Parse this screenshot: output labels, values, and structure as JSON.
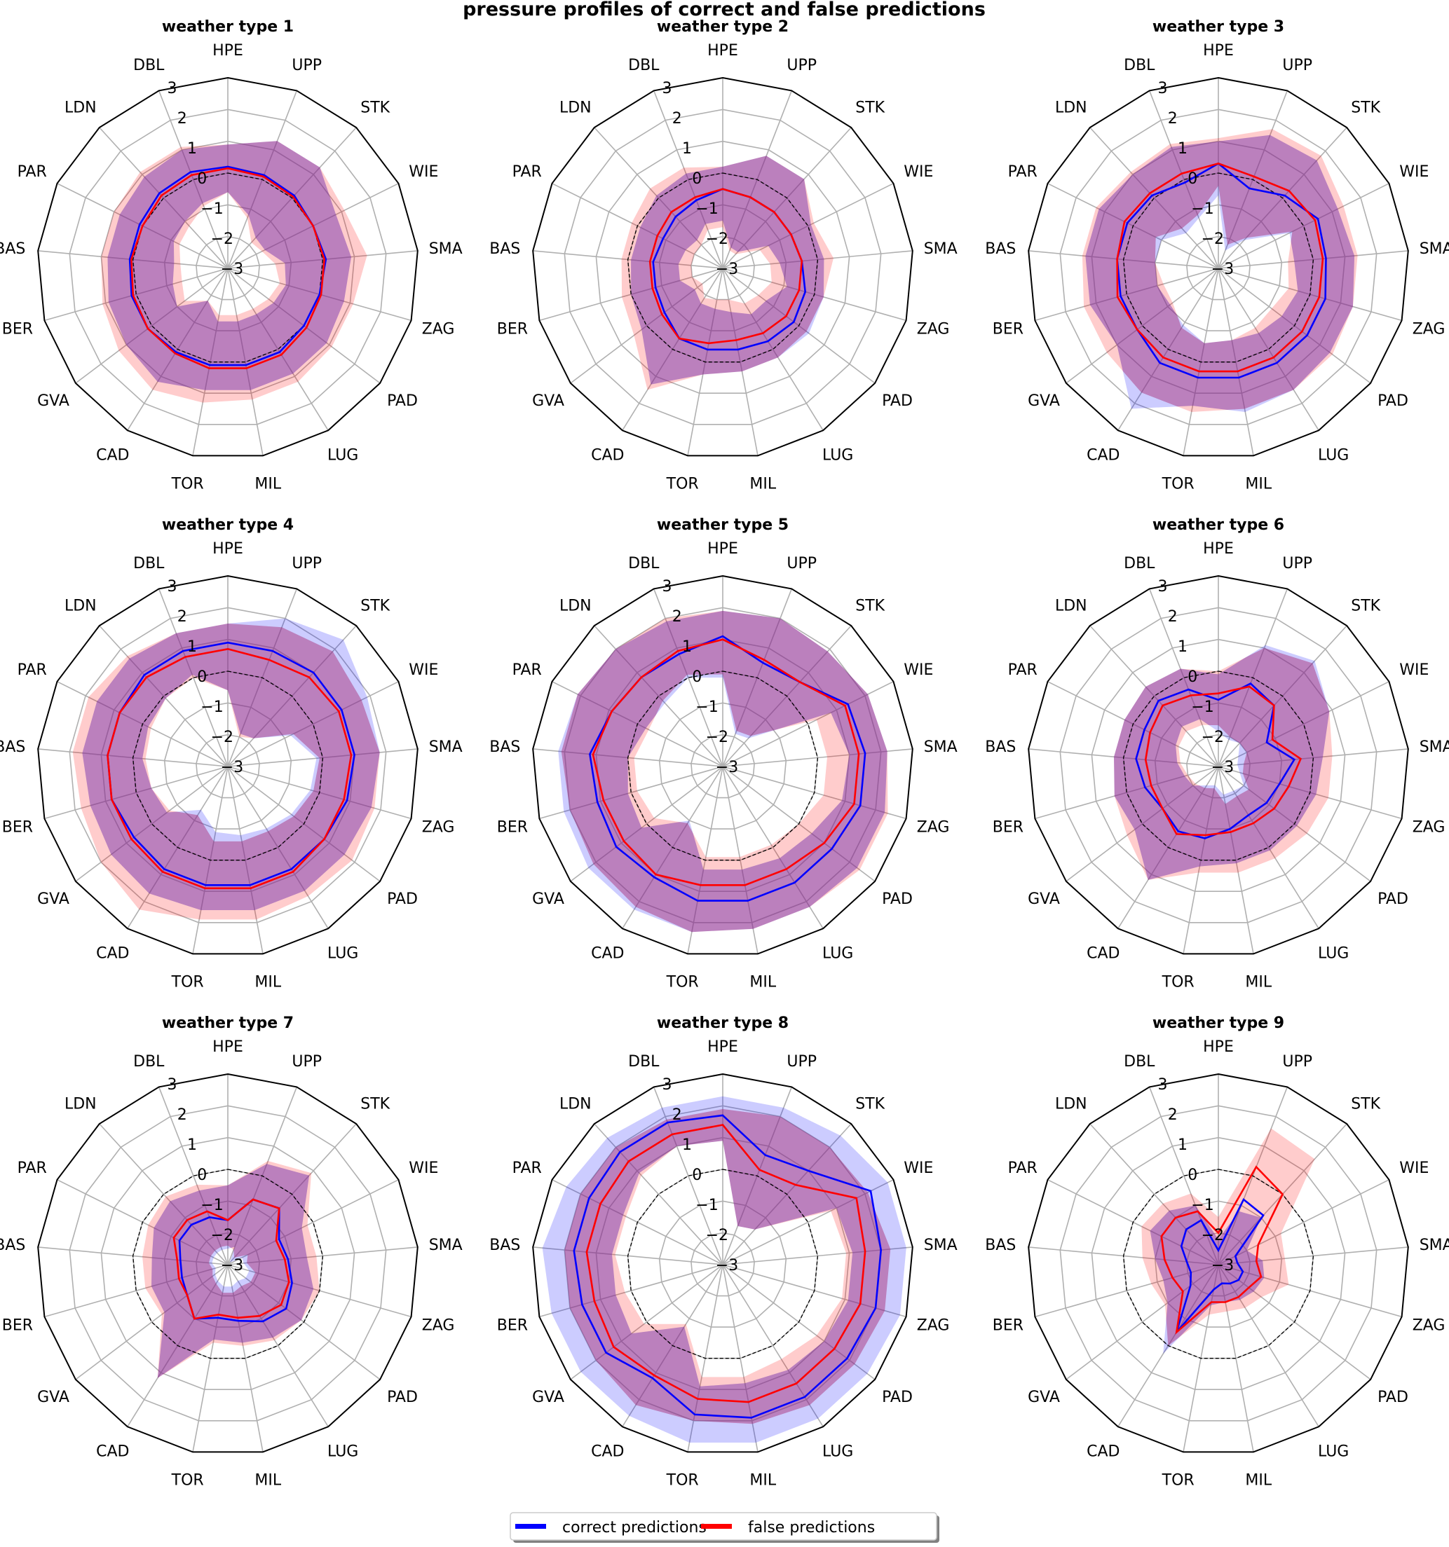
{
  "figure": {
    "title": "pressure profiles of correct and false predictions"
  },
  "legend": {
    "items": [
      {
        "label": "correct predictions",
        "color": "#0000ff"
      },
      {
        "label": "false predictions",
        "color": "#ff0000"
      }
    ]
  },
  "colors": {
    "correct_line": "#0000ff",
    "false_line": "#ff0000",
    "correct_band": "#0000ff",
    "false_band": "#ff0000",
    "grid": "#b0b0b0",
    "reference": "#000000"
  },
  "chart_data": {
    "type": "radar",
    "title": "pressure profiles of correct and false predictions",
    "axes": [
      "HPE",
      "UPP",
      "STK",
      "WIE",
      "SMA",
      "ZAG",
      "PAD",
      "LUG",
      "MIL",
      "TOR",
      "CAD",
      "GVA",
      "BER",
      "BAS",
      "PAR",
      "LDN",
      "DBL"
    ],
    "rlim": [
      -3,
      3
    ],
    "rticks": [
      -3,
      -2,
      -1,
      0,
      1,
      2,
      3
    ],
    "reference_line": {
      "value": 0,
      "style": "dashed"
    },
    "grid": true,
    "legend_position": "bottom-center",
    "panels": [
      {
        "title": "weather type 1",
        "correct": {
          "mean": [
            0.2,
            0.15,
            0.1,
            0.0,
            0.1,
            0.0,
            0.0,
            0.1,
            0.1,
            0.1,
            0.1,
            0.15,
            0.15,
            0.1,
            0.1,
            0.2,
            0.25
          ],
          "lower": [
            -0.6,
            -1.2,
            -1.7,
            -1.7,
            -1.2,
            -1.1,
            -1.2,
            -1.3,
            -1.3,
            -1.3,
            -1.8,
            -1.0,
            -1.2,
            -1.3,
            -1.1,
            -1.0,
            -0.8
          ],
          "upper": [
            0.9,
            1.3,
            1.3,
            0.8,
            0.9,
            0.8,
            0.9,
            0.9,
            0.9,
            0.9,
            1.2,
            1.0,
            0.9,
            0.8,
            0.8,
            0.9,
            1.0
          ]
        },
        "false": {
          "mean": [
            0.15,
            0.1,
            0.05,
            0.0,
            0.05,
            0.05,
            0.1,
            0.2,
            0.2,
            0.2,
            0.15,
            0.15,
            0.1,
            0.05,
            0.0,
            0.1,
            0.15
          ],
          "lower": [
            -0.6,
            -1.3,
            -1.9,
            -1.8,
            -1.5,
            -1.3,
            -1.4,
            -1.5,
            -1.5,
            -1.5,
            -1.8,
            -1.3,
            -1.5,
            -1.5,
            -1.3,
            -1.2,
            -0.9
          ],
          "upper": [
            0.9,
            1.3,
            1.3,
            1.1,
            1.4,
            1.1,
            1.1,
            1.2,
            1.2,
            1.3,
            1.5,
            1.3,
            1.1,
            1.0,
            1.0,
            1.1,
            1.1
          ]
        }
      },
      {
        "title": "weather type 2",
        "correct": {
          "mean": [
            -0.5,
            -0.6,
            -0.6,
            -0.6,
            -0.5,
            -0.3,
            -0.2,
            -0.3,
            -0.4,
            -0.4,
            -0.4,
            -0.7,
            -0.8,
            -0.8,
            -0.9,
            -0.8,
            -0.7
          ],
          "lower": [
            -1.5,
            -2.3,
            -2.3,
            -1.4,
            -1.2,
            -0.9,
            -1.3,
            -1.3,
            -1.6,
            -1.7,
            -1.7,
            -1.9,
            -1.6,
            -1.6,
            -1.7,
            -1.8,
            -1.5
          ],
          "upper": [
            0.2,
            0.8,
            0.8,
            0.1,
            0.2,
            0.3,
            0.4,
            0.3,
            0.3,
            0.4,
            1.3,
            0.2,
            0.0,
            -0.1,
            -0.1,
            0.1,
            0.2
          ]
        },
        "false": {
          "mean": [
            -0.5,
            -0.6,
            -0.6,
            -0.6,
            -0.5,
            -0.5,
            -0.5,
            -0.6,
            -0.7,
            -0.6,
            -0.4,
            -0.6,
            -0.7,
            -0.7,
            -0.7,
            -0.6,
            -0.6
          ],
          "lower": [
            -1.7,
            -2.4,
            -2.4,
            -1.7,
            -1.5,
            -1.4,
            -1.6,
            -1.7,
            -2.0,
            -2.0,
            -1.9,
            -2.2,
            -2.0,
            -2.0,
            -2.0,
            -2.0,
            -1.7
          ],
          "upper": [
            0.2,
            0.8,
            0.8,
            0.2,
            0.5,
            0.3,
            0.3,
            0.3,
            0.3,
            0.4,
            1.5,
            0.5,
            0.3,
            0.2,
            0.2,
            0.4,
            0.4
          ]
        }
      },
      {
        "title": "weather type 3",
        "correct": {
          "mean": [
            0.3,
            -0.3,
            0.1,
            0.5,
            0.4,
            0.5,
            0.5,
            0.5,
            0.5,
            0.5,
            0.5,
            0.2,
            0.2,
            0.2,
            0.2,
            0.1,
            -0.1
          ],
          "lower": [
            -0.7,
            -2.4,
            -1.8,
            -0.5,
            -0.6,
            -0.4,
            -0.5,
            -0.6,
            -0.7,
            -0.6,
            -0.9,
            -1.1,
            -1.0,
            -1.0,
            -1.0,
            -1.5,
            -1.3
          ],
          "upper": [
            1.0,
            1.5,
            1.6,
            1.2,
            1.3,
            1.4,
            1.4,
            1.5,
            1.6,
            1.4,
            2.2,
            1.0,
            1.2,
            1.2,
            1.2,
            1.0,
            1.1
          ]
        },
        "false": {
          "mean": [
            0.3,
            0.1,
            0.3,
            0.4,
            0.3,
            0.3,
            0.3,
            0.3,
            0.3,
            0.3,
            0.3,
            0.2,
            0.3,
            0.2,
            0.3,
            0.2,
            0.2
          ],
          "lower": [
            -0.4,
            -2.2,
            -1.7,
            -0.4,
            -0.8,
            -0.7,
            -0.9,
            -0.8,
            -0.7,
            -0.6,
            -0.8,
            -1.2,
            -1.2,
            -1.0,
            -0.8,
            -1.3,
            -1.2
          ],
          "upper": [
            1.1,
            1.7,
            1.8,
            1.4,
            1.4,
            1.4,
            1.5,
            1.5,
            1.5,
            1.6,
            1.6,
            1.4,
            1.4,
            1.3,
            1.3,
            1.1,
            1.2
          ]
        }
      },
      {
        "title": "weather type 4",
        "correct": {
          "mean": [
            0.9,
            0.9,
            1.0,
            1.0,
            1.0,
            0.9,
            0.8,
            0.8,
            0.8,
            0.8,
            0.8,
            0.7,
            0.8,
            0.8,
            0.8,
            0.9,
            0.9
          ],
          "lower": [
            -0.6,
            -1.9,
            -1.8,
            -0.8,
            -0.2,
            -0.3,
            -0.5,
            -0.7,
            -0.8,
            -0.9,
            -1.4,
            -0.6,
            -0.5,
            -0.3,
            -0.2,
            -0.1,
            0.1
          ],
          "upper": [
            1.5,
            2.0,
            2.4,
            1.9,
            1.8,
            1.7,
            1.6,
            1.6,
            1.6,
            1.6,
            1.7,
            1.6,
            1.5,
            1.6,
            1.6,
            1.6,
            1.5
          ]
        },
        "false": {
          "mean": [
            0.7,
            0.6,
            0.8,
            0.9,
            0.9,
            0.8,
            0.8,
            0.9,
            0.9,
            0.9,
            0.9,
            0.8,
            0.8,
            0.8,
            0.8,
            0.8,
            0.7
          ],
          "lower": [
            -0.6,
            -2.0,
            -1.8,
            -0.7,
            -0.1,
            -0.2,
            -0.4,
            -0.6,
            -0.6,
            -0.6,
            -1.2,
            -0.7,
            -0.5,
            -0.4,
            -0.3,
            -0.1,
            0.0
          ],
          "upper": [
            1.5,
            1.7,
            1.9,
            1.7,
            1.8,
            1.8,
            1.9,
            1.8,
            1.9,
            1.9,
            2.3,
            2.0,
            1.8,
            1.9,
            1.9,
            1.7,
            1.5
          ]
        }
      },
      {
        "title": "weather type 5",
        "correct": {
          "mean": [
            1.1,
            0.5,
            0.6,
            1.4,
            1.5,
            1.5,
            1.3,
            1.3,
            1.3,
            1.3,
            1.1,
            1.2,
            1.1,
            1.2,
            0.9,
            0.8,
            0.8
          ],
          "lower": [
            -0.2,
            -1.9,
            -1.8,
            0.8,
            1.0,
            0.9,
            0.5,
            0.4,
            0.3,
            0.3,
            -1.0,
            0.2,
            0.1,
            0.0,
            -0.3,
            -0.3,
            0.0
          ],
          "upper": [
            1.9,
            2.0,
            1.9,
            2.1,
            2.2,
            2.3,
            2.3,
            2.2,
            2.2,
            2.3,
            2.3,
            2.3,
            2.2,
            2.2,
            2.1,
            2.0,
            1.9
          ]
        },
        "false": {
          "mean": [
            1.0,
            0.6,
            0.6,
            1.3,
            1.3,
            1.3,
            1.0,
            0.8,
            0.8,
            0.8,
            1.0,
            0.9,
            0.9,
            1.1,
            0.9,
            0.8,
            0.9
          ],
          "lower": [
            -0.1,
            -1.8,
            -1.7,
            0.3,
            0.3,
            0.3,
            0.0,
            -0.1,
            -0.1,
            -0.1,
            -0.9,
            -0.3,
            -0.2,
            -0.2,
            -0.4,
            -0.2,
            0.1
          ],
          "upper": [
            1.9,
            2.0,
            1.9,
            2.1,
            2.2,
            2.4,
            2.4,
            2.2,
            2.2,
            2.3,
            2.2,
            2.1,
            2.0,
            2.1,
            2.1,
            2.0,
            2.0
          ]
        }
      },
      {
        "title": "weather type 6",
        "correct": {
          "mean": [
            -0.9,
            -0.2,
            -0.4,
            -1.3,
            -0.6,
            -1.0,
            -1.1,
            -1.2,
            -1.0,
            -0.7,
            -0.6,
            -0.8,
            -0.6,
            -0.4,
            -0.4,
            -0.2,
            -0.4
          ],
          "lower": [
            -1.9,
            -2.1,
            -2.0,
            -2.3,
            -2.4,
            -2.3,
            -2.0,
            -2.1,
            -2.1,
            -2.4,
            -2.3,
            -2.0,
            -1.9,
            -1.7,
            -1.5,
            -1.3,
            -1.4
          ],
          "upper": [
            -0.1,
            1.1,
            1.5,
            0.9,
            0.3,
            0.2,
            0.1,
            0.1,
            0.1,
            0.2,
            1.2,
            0.3,
            0.4,
            0.3,
            0.3,
            0.4,
            0.3
          ]
        },
        "false": {
          "mean": [
            -0.7,
            -0.3,
            -0.4,
            -1.1,
            -0.4,
            -0.7,
            -0.8,
            -0.9,
            -0.9,
            -0.8,
            -0.5,
            -0.8,
            -0.8,
            -0.7,
            -0.6,
            -0.4,
            -0.6
          ],
          "lower": [
            -1.7,
            -2.0,
            -2.0,
            -2.0,
            -2.2,
            -2.2,
            -1.8,
            -1.9,
            -1.8,
            -2.3,
            -2.2,
            -2.1,
            -2.0,
            -1.8,
            -1.6,
            -1.5,
            -1.6
          ],
          "upper": [
            0.0,
            1.0,
            1.4,
            0.9,
            0.6,
            0.6,
            0.5,
            0.4,
            0.4,
            0.4,
            1.2,
            0.6,
            0.4,
            0.3,
            0.3,
            0.4,
            0.3
          ]
        }
      },
      {
        "title": "weather type 7",
        "correct": {
          "mean": [
            -1.6,
            -0.8,
            -0.6,
            -1.2,
            -1.1,
            -0.9,
            -0.7,
            -0.9,
            -1.2,
            -1.3,
            -1.0,
            -1.4,
            -1.5,
            -1.5,
            -1.3,
            -1.3,
            -1.4
          ],
          "lower": [
            -2.5,
            -2.4,
            -2.9,
            -2.5,
            -2.5,
            -2.3,
            -2.3,
            -2.4,
            -2.3,
            -2.3,
            -2.4,
            -2.5,
            -2.6,
            -2.5,
            -2.5,
            -2.5,
            -2.5
          ],
          "upper": [
            -0.5,
            0.4,
            0.8,
            -0.4,
            -0.5,
            -0.2,
            -0.1,
            -0.3,
            -0.5,
            -0.6,
            1.2,
            -0.5,
            -0.5,
            -0.6,
            -0.4,
            -0.3,
            -0.5
          ]
        },
        "false": {
          "mean": [
            -1.6,
            -0.8,
            -0.6,
            -1.3,
            -1.2,
            -1.0,
            -0.9,
            -1.1,
            -1.3,
            -1.4,
            -1.0,
            -1.4,
            -1.4,
            -1.4,
            -1.1,
            -1.1,
            -1.2
          ],
          "lower": [
            -2.4,
            -2.5,
            -2.7,
            -2.3,
            -2.4,
            -2.1,
            -2.1,
            -2.2,
            -2.1,
            -2.1,
            -2.3,
            -2.4,
            -2.5,
            -2.4,
            -2.4,
            -2.4,
            -2.4
          ],
          "upper": [
            -0.5,
            0.5,
            0.9,
            -0.2,
            -0.2,
            0.0,
            -0.1,
            -0.2,
            -0.4,
            -0.5,
            1.2,
            -0.4,
            -0.3,
            -0.3,
            -0.2,
            -0.1,
            -0.3
          ]
        }
      },
      {
        "title": "weather type 8",
        "correct": {
          "mean": [
            1.7,
            0.7,
            1.0,
            2.2,
            2.0,
            2.0,
            1.9,
            1.9,
            1.9,
            1.8,
            1.2,
            1.6,
            1.6,
            1.7,
            1.7,
            1.8,
            1.8
          ],
          "lower": [
            0.9,
            -1.7,
            -1.5,
            1.0,
            1.1,
            1.1,
            1.0,
            0.9,
            0.8,
            0.9,
            -0.7,
            0.6,
            0.5,
            0.5,
            0.5,
            0.9,
            1.0
          ],
          "upper": [
            2.3,
            2.3,
            2.5,
            2.8,
            2.8,
            2.8,
            2.7,
            2.7,
            2.7,
            2.7,
            2.6,
            2.6,
            2.6,
            2.7,
            2.5,
            2.4,
            2.3
          ]
        },
        "false": {
          "mean": [
            1.4,
            0.2,
            0.4,
            1.7,
            1.5,
            1.5,
            1.4,
            1.4,
            1.4,
            1.3,
            1.1,
            1.3,
            1.2,
            1.3,
            1.3,
            1.4,
            1.4
          ],
          "lower": [
            0.9,
            -1.7,
            -1.5,
            0.8,
            0.9,
            0.9,
            0.7,
            0.5,
            0.6,
            0.6,
            -0.8,
            0.1,
            0.2,
            0.4,
            0.4,
            0.8,
            1.0
          ],
          "upper": [
            1.9,
            2.0,
            2.0,
            2.1,
            2.3,
            2.3,
            2.2,
            2.2,
            2.1,
            2.0,
            2.2,
            2.0,
            2.0,
            2.0,
            2.0,
            2.0,
            1.9
          ]
        }
      },
      {
        "title": "weather type 9",
        "correct": {
          "mean": [
            -2.55,
            -0.8,
            -0.9,
            -2.4,
            -2.4,
            -2.2,
            -2.2,
            -2.3,
            -2.4,
            -2.2,
            -0.5,
            -1.9,
            -2.1,
            -2.0,
            -1.7,
            -1.5,
            -1.5
          ],
          "lower": [
            -3.0,
            -3.0,
            -3.0,
            -3.0,
            -3.0,
            -3.0,
            -3.0,
            -3.0,
            -3.0,
            -3.0,
            -3.0,
            -3.0,
            -3.0,
            -3.0,
            -3.0,
            -3.0,
            -3.0
          ],
          "upper": [
            -2.2,
            -1.2,
            -1.0,
            -2.0,
            -1.6,
            -1.5,
            -1.6,
            -1.7,
            -1.8,
            -1.7,
            0.3,
            -1.0,
            -1.2,
            -1.0,
            -0.6,
            -0.7,
            -1.0
          ]
        },
        "false": {
          "mean": [
            -2.0,
            0.3,
            0.0,
            -1.6,
            -1.8,
            -1.6,
            -1.8,
            -1.8,
            -1.8,
            -1.8,
            -0.5,
            -1.6,
            -1.5,
            -1.3,
            -1.0,
            -1.0,
            -1.2
          ],
          "lower": [
            -3.0,
            -3.0,
            -3.0,
            -3.0,
            -3.0,
            -3.0,
            -3.0,
            -3.0,
            -3.0,
            -3.0,
            -3.0,
            -3.0,
            -3.0,
            -3.0,
            -3.0,
            -3.0,
            -3.0
          ],
          "upper": [
            -1.5,
            1.6,
            1.5,
            -0.8,
            -0.9,
            -0.7,
            -1.3,
            -1.4,
            -1.5,
            -1.4,
            0.0,
            -0.9,
            -0.8,
            -0.6,
            -0.3,
            -0.4,
            -0.6
          ]
        }
      }
    ]
  }
}
